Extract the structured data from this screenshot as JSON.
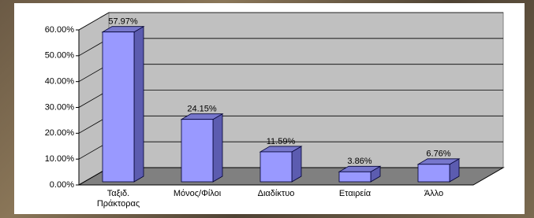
{
  "chart_data": {
    "type": "bar3d",
    "categories": [
      "Ταξιδ. Πράκτορας",
      "Μόνος/Φίλοι",
      "Διαδίκτυο",
      "Εταιρεία",
      "Άλλο"
    ],
    "values": [
      57.97,
      24.15,
      11.59,
      3.86,
      6.76
    ],
    "value_labels": [
      "57.97%",
      "24.15%",
      "11.59%",
      "3.86%",
      "6.76%"
    ],
    "color": "#9999ff",
    "ylim": [
      0,
      60
    ],
    "yticks": [
      {
        "value": 0,
        "label": "0.00%"
      },
      {
        "value": 10,
        "label": "10.00%"
      },
      {
        "value": 20,
        "label": "20.00%"
      },
      {
        "value": 30,
        "label": "30.00%"
      },
      {
        "value": 40,
        "label": "40.00%"
      },
      {
        "value": 50,
        "label": "50.00%"
      },
      {
        "value": 60,
        "label": "60.00%"
      }
    ],
    "grid": true
  }
}
